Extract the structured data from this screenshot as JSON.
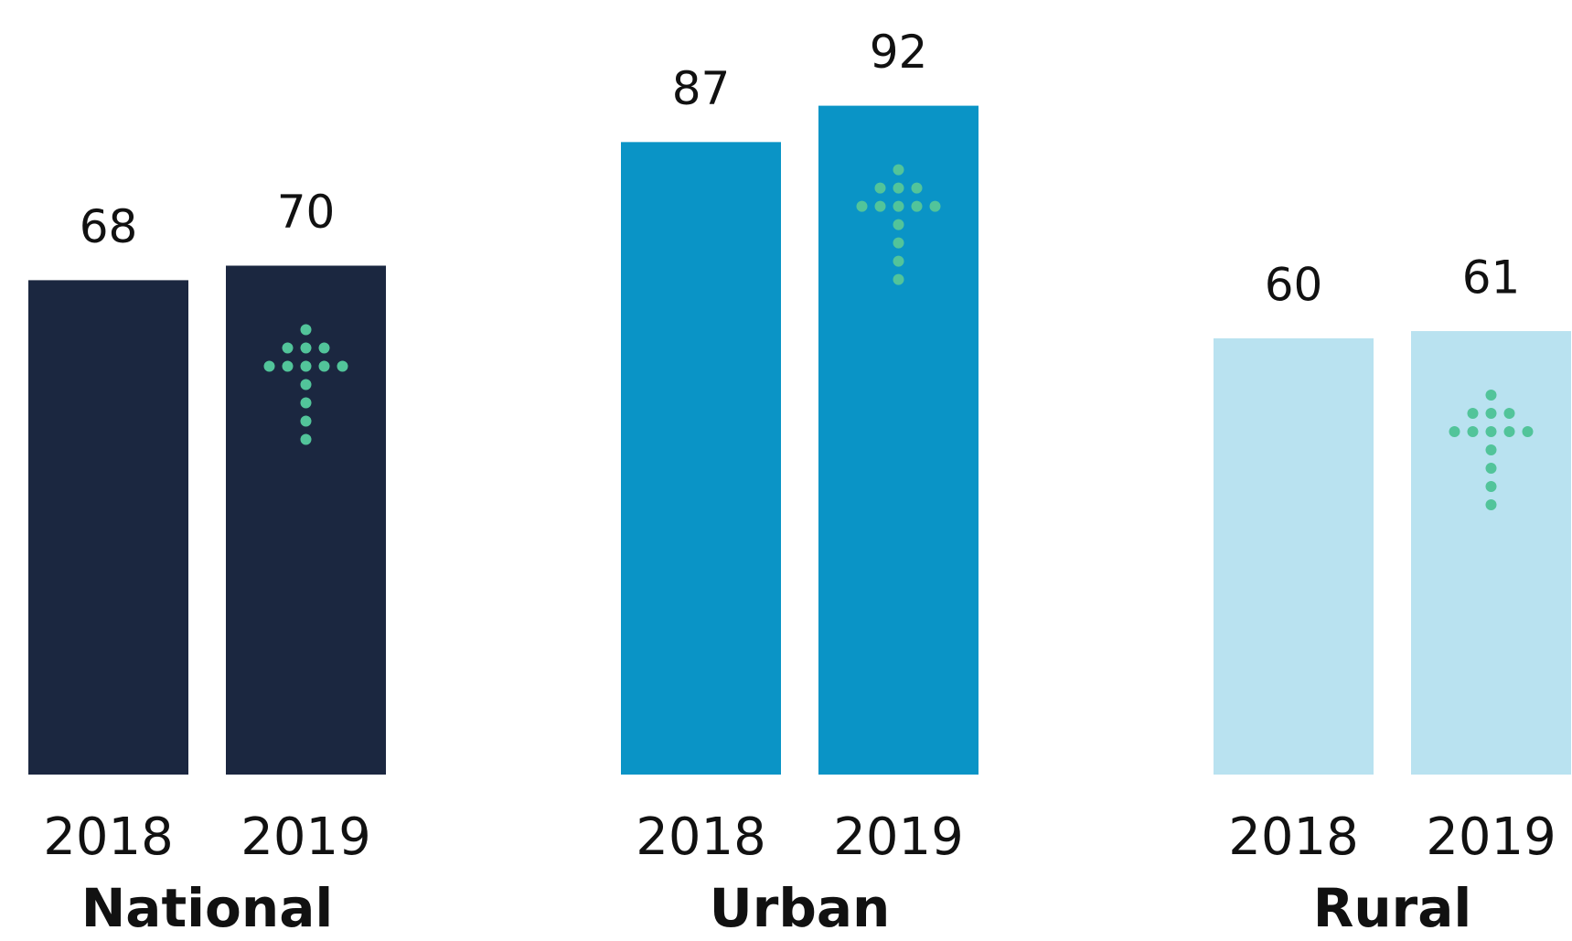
{
  "chart_data": {
    "type": "bar",
    "categories": [
      "National",
      "Urban",
      "Rural"
    ],
    "colors": [
      "#1b2740",
      "#0a94c6",
      "#b9e2f0"
    ],
    "series": [
      {
        "name": "2018",
        "values": [
          68,
          87,
          60
        ]
      },
      {
        "name": "2019",
        "values": [
          70,
          92,
          61
        ]
      }
    ],
    "ylim": [
      0,
      100
    ]
  }
}
